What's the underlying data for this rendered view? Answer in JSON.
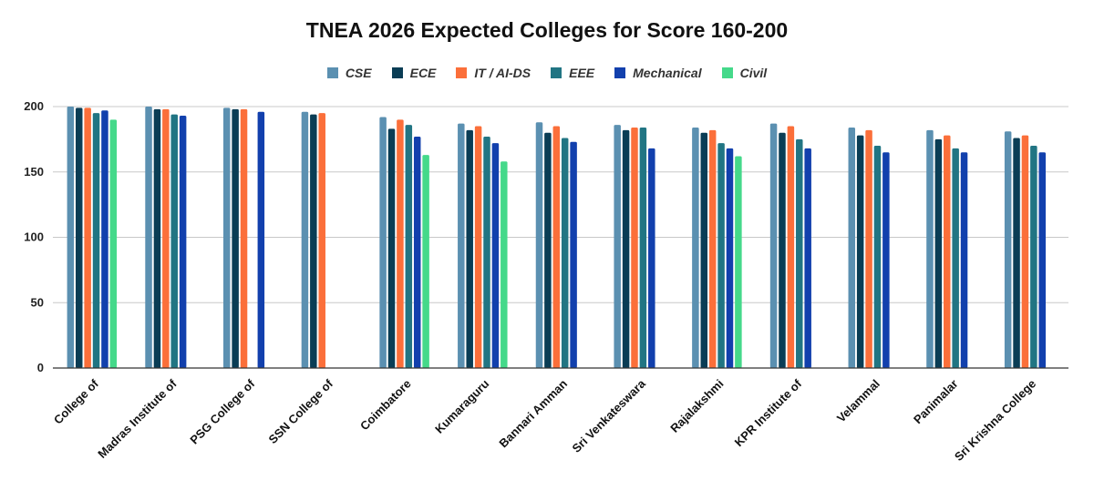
{
  "chart_data": {
    "type": "bar",
    "title": "TNEA 2026 Expected Colleges for Score 160-200",
    "xlabel": "",
    "ylabel": "",
    "ylim": [
      0,
      200
    ],
    "yticks": [
      0,
      50,
      100,
      150,
      200
    ],
    "grid": true,
    "legend_position": "top-center",
    "categories": [
      "College of",
      "Madras Institute of",
      "PSG College of",
      "SSN College of",
      "Coimbatore",
      "Kumaraguru",
      "Bannari Amman",
      "Sri Venkateswara",
      "Rajalakshmi",
      "KPR Institute of",
      "Velammal",
      "Panimalar",
      "Sri Krishna College"
    ],
    "series": [
      {
        "name": "CSE",
        "color": "#5b90b1",
        "values": [
          200,
          200,
          199,
          196,
          192,
          187,
          188,
          186,
          184,
          187,
          184,
          182,
          181
        ]
      },
      {
        "name": "ECE",
        "color": "#0a3d55",
        "values": [
          199,
          198,
          198,
          194,
          183,
          182,
          180,
          182,
          180,
          180,
          178,
          175,
          176
        ]
      },
      {
        "name": "IT / AI-DS",
        "color": "#fb6f3a",
        "values": [
          199,
          198,
          198,
          195,
          190,
          185,
          185,
          184,
          182,
          185,
          182,
          178,
          178
        ]
      },
      {
        "name": "EEE",
        "color": "#217583",
        "values": [
          195,
          194,
          null,
          null,
          186,
          177,
          176,
          184,
          172,
          175,
          170,
          168,
          170
        ]
      },
      {
        "name": "Mechanical",
        "color": "#1240ad",
        "values": [
          197,
          193,
          196,
          null,
          177,
          172,
          173,
          168,
          168,
          168,
          165,
          165,
          165
        ]
      },
      {
        "name": "Civil",
        "color": "#45d98a",
        "values": [
          190,
          null,
          null,
          null,
          163,
          158,
          null,
          null,
          162,
          null,
          null,
          null,
          null
        ]
      }
    ]
  }
}
